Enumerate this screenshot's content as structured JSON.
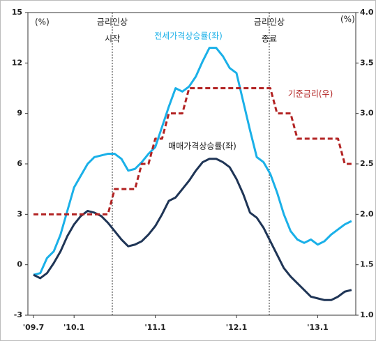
{
  "chart_data": {
    "type": "line",
    "categories": [
      "'09.7",
      null,
      null,
      null,
      null,
      null,
      "'10.1",
      null,
      null,
      null,
      null,
      null,
      null,
      null,
      null,
      null,
      null,
      null,
      "'11.1",
      null,
      null,
      null,
      null,
      null,
      null,
      null,
      null,
      null,
      null,
      null,
      "'12.1",
      null,
      null,
      null,
      null,
      null,
      null,
      null,
      null,
      null,
      null,
      null,
      "'13.1",
      null,
      null,
      null,
      null,
      null
    ],
    "ylim": [
      -3,
      15
    ],
    "yticks": [
      -3,
      0,
      3,
      6,
      9,
      12,
      15
    ],
    "y2lim": [
      1,
      4
    ],
    "y2ticks": [
      {
        "value": 1,
        "label": "1.0"
      },
      {
        "value": 1.5,
        "label": "1.5"
      },
      {
        "value": 2,
        "label": "2.0"
      },
      {
        "value": 2.5,
        "label": "2.5"
      },
      {
        "value": 3,
        "label": "3.0"
      },
      {
        "value": 3.5,
        "label": "3.5"
      },
      {
        "value": 4,
        "label": "4.0"
      }
    ],
    "y_unit": "(%)",
    "y2_unit": "(%)",
    "annotations": [
      {
        "lines": [
          "금리인상",
          "시작"
        ]
      },
      {
        "lines": [
          "금리인상",
          "종료"
        ]
      }
    ],
    "series": [
      {
        "name": "전세가격상승률(좌)",
        "color": "#1ab0e8",
        "values": [
          -0.6,
          -0.5,
          0.4,
          0.8,
          1.8,
          3.2,
          4.6,
          5.3,
          6.0,
          6.4,
          6.5,
          6.6,
          6.6,
          6.3,
          5.6,
          5.7,
          6.1,
          6.6,
          7.0,
          8.2,
          9.4,
          10.5,
          10.3,
          10.6,
          11.2,
          12.1,
          12.9,
          12.9,
          12.4,
          11.7,
          11.4,
          9.7,
          8.0,
          6.4,
          6.1,
          5.4,
          4.3,
          3.0,
          2.0,
          1.5,
          1.3,
          1.5,
          1.2,
          1.4,
          1.8,
          2.1,
          2.4,
          2.6
        ]
      },
      {
        "name": "매매가격상승률(좌)",
        "color": "#1f3556",
        "values": [
          -0.6,
          -0.8,
          -0.5,
          0.1,
          0.8,
          1.7,
          2.4,
          2.9,
          3.2,
          3.1,
          2.9,
          2.5,
          2.0,
          1.5,
          1.1,
          1.2,
          1.4,
          1.8,
          2.3,
          3.0,
          3.8,
          4.0,
          4.5,
          5.0,
          5.6,
          6.1,
          6.3,
          6.3,
          6.1,
          5.8,
          5.1,
          4.2,
          3.1,
          2.8,
          2.2,
          1.4,
          0.6,
          -0.2,
          -0.7,
          -1.1,
          -1.5,
          -1.9,
          -2.0,
          -2.1,
          -2.1,
          -1.9,
          -1.6,
          -1.5
        ]
      },
      {
        "name": "기준금리(우)",
        "color": "#b22222",
        "axis": "y2",
        "dashed": true,
        "values": [
          2,
          2,
          2,
          2,
          2,
          2,
          2,
          2,
          2,
          2,
          2,
          2,
          2.25,
          2.25,
          2.25,
          2.25,
          2.5,
          2.5,
          2.75,
          2.75,
          3,
          3,
          3,
          3.25,
          3.25,
          3.25,
          3.25,
          3.25,
          3.25,
          3.25,
          3.25,
          3.25,
          3.25,
          3.25,
          3.25,
          3.25,
          3,
          3,
          3,
          2.75,
          2.75,
          2.75,
          2.75,
          2.75,
          2.75,
          2.75,
          2.5,
          2.5
        ]
      }
    ]
  }
}
